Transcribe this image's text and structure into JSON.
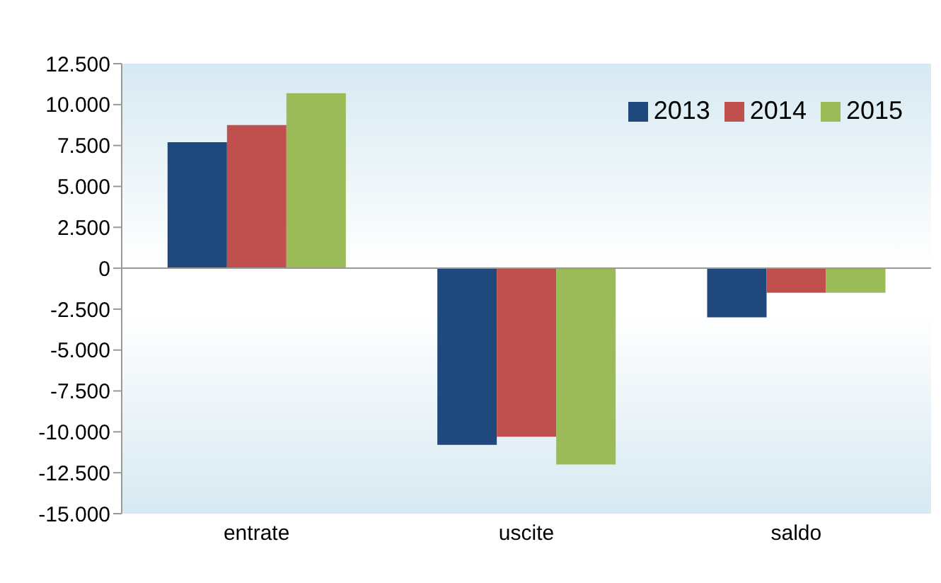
{
  "chart_data": {
    "type": "bar",
    "categories": [
      "entrate",
      "uscite",
      "saldo"
    ],
    "series": [
      {
        "name": "2013",
        "color": "#1f497d",
        "values": [
          7700,
          -10800,
          -3000
        ]
      },
      {
        "name": "2014",
        "color": "#c0504d",
        "values": [
          8750,
          -10300,
          -1500
        ]
      },
      {
        "name": "2015",
        "color": "#9bbb59",
        "values": [
          10700,
          -12000,
          -1500
        ]
      }
    ],
    "ylim": [
      -15000,
      12500
    ],
    "yticks": [
      {
        "value": -15000,
        "label": "-15.000"
      },
      {
        "value": -12500,
        "label": "-12.500"
      },
      {
        "value": -10000,
        "label": "-10.000"
      },
      {
        "value": -7500,
        "label": "-7.500"
      },
      {
        "value": -5000,
        "label": "-5.000"
      },
      {
        "value": -2500,
        "label": "-2.500"
      },
      0,
      {
        "value": 2500,
        "label": "2.500"
      },
      {
        "value": 5000,
        "label": "5.000"
      },
      {
        "value": 7500,
        "label": "7.500"
      },
      {
        "value": 10000,
        "label": "10.000"
      },
      {
        "value": 12500,
        "label": "12.500"
      }
    ],
    "legend": "top right"
  }
}
